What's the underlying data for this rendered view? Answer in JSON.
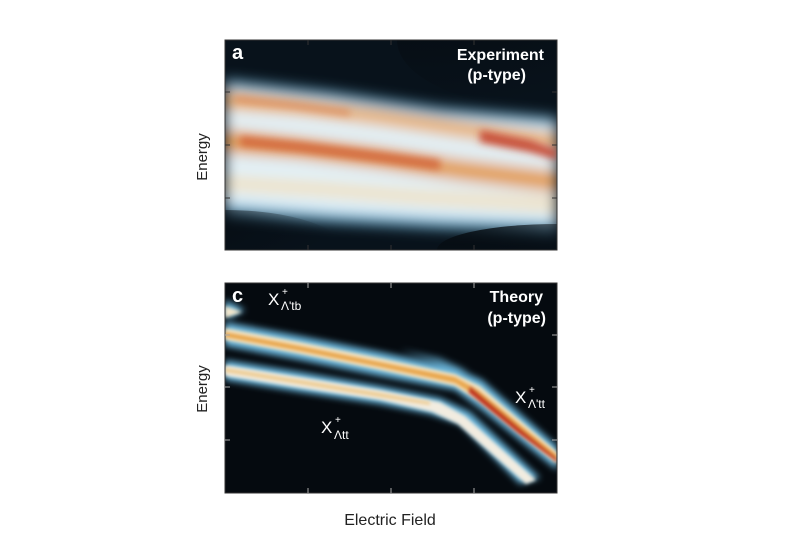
{
  "panels": [
    {
      "letter": "a",
      "title_line1": "Experiment",
      "title_line2": "(p-type)",
      "ylabel": "Energy",
      "labels": []
    },
    {
      "letter": "c",
      "title_line1": "Theory",
      "title_line2": "(p-type)",
      "ylabel": "Energy",
      "labels": [
        {
          "base": "X",
          "sup": "+",
          "sub": "Λ'tb"
        },
        {
          "base": "X",
          "sup": "+",
          "sub": "Λtt"
        },
        {
          "base": "X",
          "sup": "+",
          "sub": "Λ'tt"
        }
      ]
    }
  ],
  "xlabel": "Electric Field",
  "colors": {
    "background_dark": "#050a0f",
    "background_light": "#f2f6f8",
    "band_low": "#7cc0e0",
    "band_mid": "#f5e6c8",
    "band_high": "#e8a048",
    "band_peak": "#c43020"
  }
}
